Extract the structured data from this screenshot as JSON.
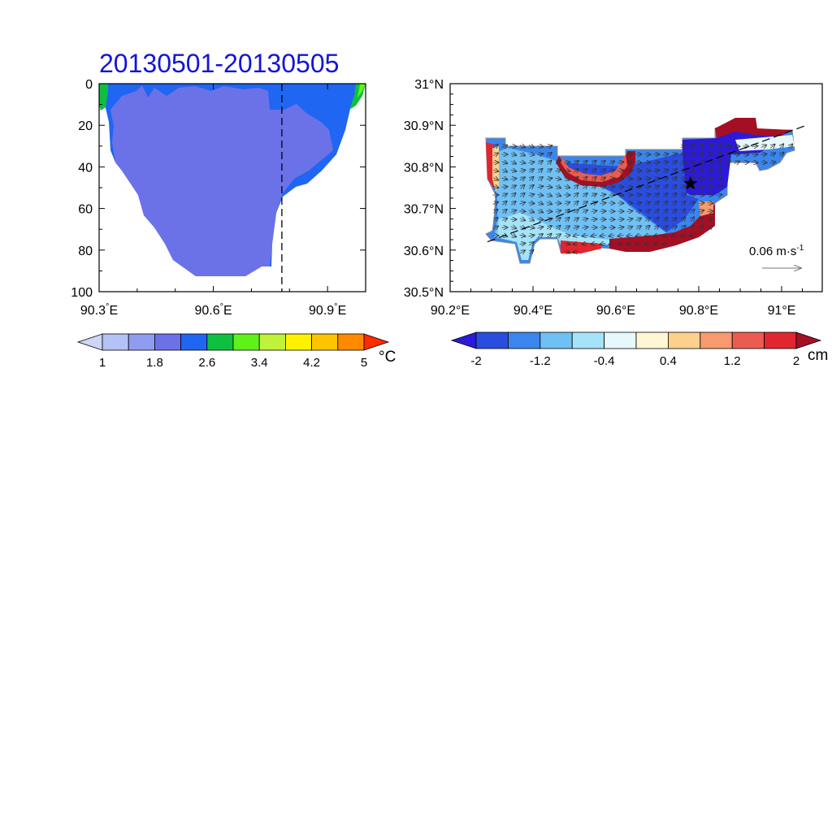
{
  "chart_data": [
    {
      "type": "heatmap",
      "title": "20130501-20130505",
      "x_ticks": [
        "90.3°E",
        "90.6°E",
        "90.9°E"
      ],
      "x_tick_values": [
        90.3,
        90.6,
        90.9
      ],
      "xlim": [
        90.3,
        91.0
      ],
      "y_ticks": [
        "0",
        "20",
        "40",
        "60",
        "80",
        "100"
      ],
      "y_tick_values": [
        0,
        20,
        40,
        60,
        80,
        100
      ],
      "ylim": [
        100,
        0
      ],
      "dashed_line_x": 90.78,
      "colorbar": {
        "levels": [
          1,
          1.4,
          1.8,
          2.2,
          2.6,
          3.0,
          3.4,
          3.8,
          4.2,
          4.6,
          5
        ],
        "labels": [
          "1",
          "1.8",
          "2.6",
          "3.4",
          "4.2",
          "5"
        ],
        "colors": [
          "#cdd6f4",
          "#b4c3f7",
          "#8f9df0",
          "#6b72e8",
          "#1f66f2",
          "#0fbf3f",
          "#5ef21a",
          "#c0f23a",
          "#fff200",
          "#ffc400",
          "#ff8a00",
          "#ff2a00"
        ],
        "unit": "°C"
      }
    },
    {
      "type": "heatmap",
      "x_ticks": [
        "90.2°E",
        "90.4°E",
        "90.6°E",
        "90.8°E",
        "91°E"
      ],
      "x_tick_values": [
        90.2,
        90.4,
        90.6,
        90.8,
        91.0
      ],
      "xlim": [
        90.2,
        91.2
      ],
      "y_ticks": [
        "30.5°N",
        "30.6°N",
        "30.7°N",
        "30.8°N",
        "30.9°N",
        "31°N"
      ],
      "y_tick_values": [
        30.5,
        30.6,
        30.7,
        30.8,
        30.9,
        31.0
      ],
      "ylim": [
        30.5,
        31.0
      ],
      "section_line": [
        [
          90.29,
          30.62
        ],
        [
          91.06,
          30.9
        ]
      ],
      "star": [
        90.78,
        30.76
      ],
      "reference_vector": "0.06 m·s",
      "reference_vector_exponent": "-1",
      "colorbar": {
        "levels": [
          -2,
          -1.6,
          -1.2,
          -0.8,
          -0.4,
          0,
          0.4,
          0.8,
          1.2,
          1.6,
          2
        ],
        "labels": [
          "-2",
          "-1.2",
          "-0.4",
          "0.4",
          "1.2",
          "2"
        ],
        "colors": [
          "#2c1ad6",
          "#2a4de0",
          "#3a86ee",
          "#6fc0f4",
          "#a4e3f8",
          "#e6f8fb",
          "#fff6d6",
          "#fdd08c",
          "#f79a6e",
          "#ec5b4f",
          "#e2262f",
          "#a50f24"
        ],
        "unit": "cm"
      }
    }
  ]
}
